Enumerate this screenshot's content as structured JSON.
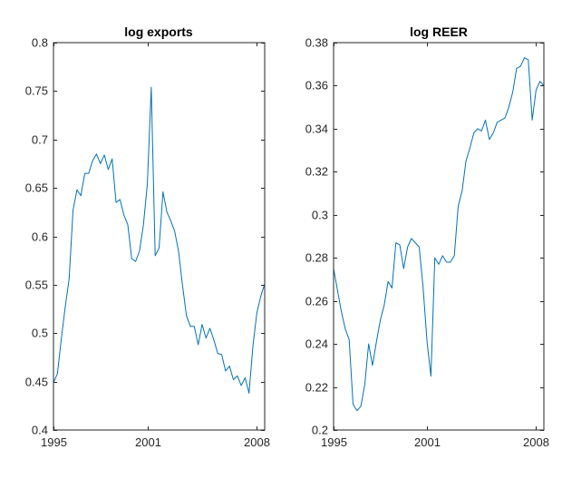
{
  "chart_data": [
    {
      "type": "line",
      "title": "log exports",
      "xlabel": "",
      "ylabel": "",
      "xlim": [
        1995,
        2008.5
      ],
      "ylim": [
        0.4,
        0.8
      ],
      "xticks": [
        1995,
        2001,
        2008
      ],
      "xtick_labels": [
        "1995",
        "2001",
        "2008"
      ],
      "yticks": [
        0.4,
        0.45,
        0.5,
        0.55,
        0.6,
        0.65,
        0.7,
        0.75,
        0.8
      ],
      "ytick_labels": [
        "0.4",
        "0.45",
        "0.5",
        "0.55",
        "0.6",
        "0.65",
        "0.7",
        "0.75",
        "0.8"
      ],
      "grid": false,
      "color": "#0072BD",
      "series": [
        {
          "name": "log exports",
          "x": [
            1995.0,
            1995.25,
            1995.5,
            1995.75,
            1996.0,
            1996.25,
            1996.5,
            1996.75,
            1997.0,
            1997.25,
            1997.5,
            1997.75,
            1998.0,
            1998.25,
            1998.5,
            1998.75,
            1999.0,
            1999.25,
            1999.5,
            1999.75,
            2000.0,
            2000.25,
            2000.5,
            2000.75,
            2001.0,
            2001.25,
            2001.5,
            2001.75,
            2002.0,
            2002.25,
            2002.5,
            2002.75,
            2003.0,
            2003.25,
            2003.5,
            2003.75,
            2004.0,
            2004.25,
            2004.5,
            2004.75,
            2005.0,
            2005.25,
            2005.5,
            2005.75,
            2006.0,
            2006.25,
            2006.5,
            2006.75,
            2007.0,
            2007.25,
            2007.5,
            2007.75,
            2008.0,
            2008.25,
            2008.5
          ],
          "y": [
            0.449,
            0.458,
            0.494,
            0.527,
            0.556,
            0.627,
            0.648,
            0.642,
            0.665,
            0.665,
            0.678,
            0.685,
            0.675,
            0.684,
            0.669,
            0.68,
            0.635,
            0.638,
            0.622,
            0.612,
            0.577,
            0.574,
            0.585,
            0.612,
            0.654,
            0.754,
            0.58,
            0.588,
            0.646,
            0.625,
            0.616,
            0.605,
            0.584,
            0.549,
            0.518,
            0.507,
            0.507,
            0.488,
            0.509,
            0.495,
            0.505,
            0.493,
            0.479,
            0.478,
            0.461,
            0.466,
            0.452,
            0.456,
            0.446,
            0.454,
            0.438,
            0.487,
            0.521,
            0.538,
            0.551
          ]
        }
      ]
    },
    {
      "type": "line",
      "title": "log REER",
      "xlabel": "",
      "ylabel": "",
      "xlim": [
        1995,
        2008.5
      ],
      "ylim": [
        0.2,
        0.38
      ],
      "xticks": [
        1995,
        2001,
        2008
      ],
      "xtick_labels": [
        "1995",
        "2001",
        "2008"
      ],
      "yticks": [
        0.2,
        0.22,
        0.24,
        0.26,
        0.28,
        0.3,
        0.32,
        0.34,
        0.36,
        0.38
      ],
      "ytick_labels": [
        "0.2",
        "0.22",
        "0.24",
        "0.26",
        "0.28",
        "0.3",
        "0.32",
        "0.34",
        "0.36",
        "0.38"
      ],
      "grid": false,
      "color": "#0072BD",
      "series": [
        {
          "name": "log REER",
          "x": [
            1995.0,
            1995.25,
            1995.5,
            1995.75,
            1996.0,
            1996.25,
            1996.5,
            1996.75,
            1997.0,
            1997.25,
            1997.5,
            1997.75,
            1998.0,
            1998.25,
            1998.5,
            1998.75,
            1999.0,
            1999.25,
            1999.5,
            1999.75,
            2000.0,
            2000.25,
            2000.5,
            2000.75,
            2001.0,
            2001.25,
            2001.5,
            2001.75,
            2002.0,
            2002.25,
            2002.5,
            2002.75,
            2003.0,
            2003.25,
            2003.5,
            2003.75,
            2004.0,
            2004.25,
            2004.5,
            2004.75,
            2005.0,
            2005.25,
            2005.5,
            2005.75,
            2006.0,
            2006.25,
            2006.5,
            2006.75,
            2007.0,
            2007.25,
            2007.5,
            2007.75,
            2008.0,
            2008.25,
            2008.5
          ],
          "y": [
            0.275,
            0.265,
            0.255,
            0.247,
            0.242,
            0.212,
            0.209,
            0.211,
            0.221,
            0.24,
            0.23,
            0.241,
            0.251,
            0.258,
            0.269,
            0.266,
            0.287,
            0.286,
            0.275,
            0.285,
            0.289,
            0.287,
            0.285,
            0.266,
            0.241,
            0.225,
            0.28,
            0.277,
            0.281,
            0.278,
            0.278,
            0.281,
            0.304,
            0.311,
            0.325,
            0.331,
            0.338,
            0.34,
            0.339,
            0.344,
            0.335,
            0.338,
            0.343,
            0.344,
            0.345,
            0.35,
            0.357,
            0.368,
            0.369,
            0.373,
            0.372,
            0.344,
            0.358,
            0.362,
            0.36
          ]
        }
      ]
    }
  ]
}
